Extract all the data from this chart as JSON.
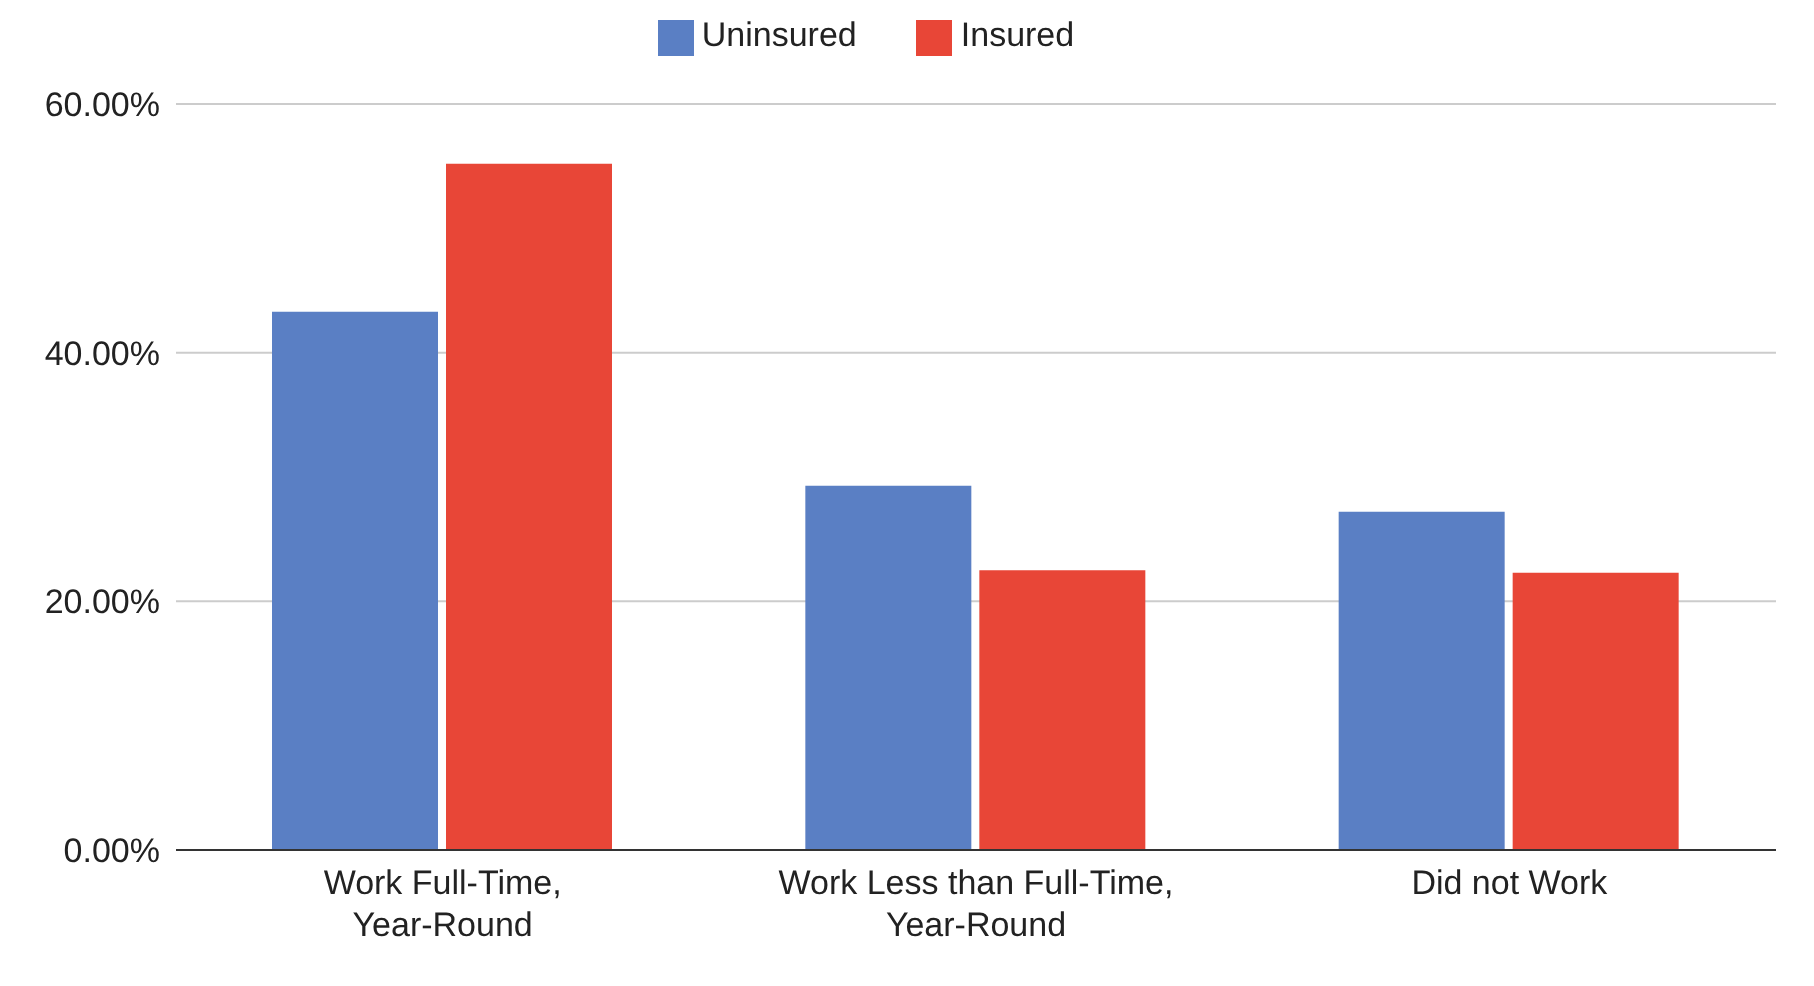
{
  "chart_data": {
    "type": "bar",
    "categories": [
      "Work Full-Time, Year-Round",
      "Work Less than Full-Time, Year-Round",
      "Did not Work"
    ],
    "series": [
      {
        "name": "Uninsured",
        "color": "#5a7fc4",
        "values": [
          43.3,
          29.3,
          27.2
        ]
      },
      {
        "name": "Insured",
        "color": "#e84637",
        "values": [
          55.2,
          22.5,
          22.3
        ]
      }
    ],
    "ylim": [
      0,
      60
    ],
    "yticks": [
      {
        "value": 0,
        "label": "0.00%"
      },
      {
        "value": 20,
        "label": "20.00%"
      },
      {
        "value": 40,
        "label": "40.00%"
      },
      {
        "value": 60,
        "label": "60.00%"
      }
    ],
    "grid": "y",
    "legend": "top"
  }
}
